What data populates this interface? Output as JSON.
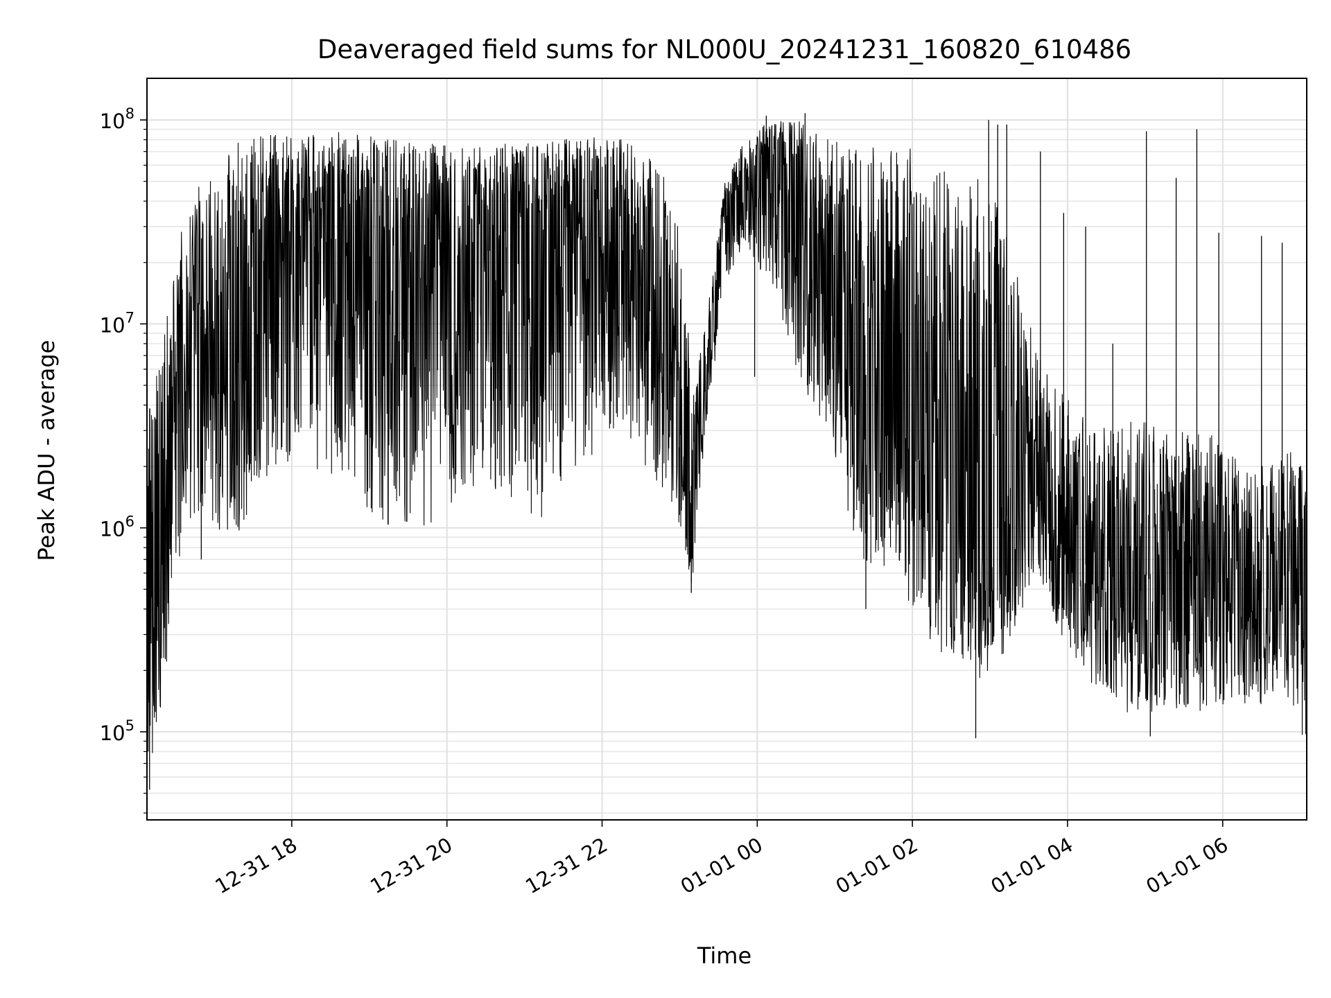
{
  "chart_data": {
    "type": "line",
    "title": "Deaveraged field sums for NL000U_20241231_160820_610486",
    "xlabel": "Time",
    "ylabel": "Peak ADU - average",
    "x_type": "datetime",
    "xlim": [
      "2024-12-31 16:08",
      "2025-01-01 07:05"
    ],
    "y_scale": "log",
    "ylim": [
      37000,
      160000000
    ],
    "grid": true,
    "x_ticks": [
      {
        "time": "2024-12-31 18:00",
        "label": "12-31 18"
      },
      {
        "time": "2024-12-31 20:00",
        "label": "12-31 20"
      },
      {
        "time": "2024-12-31 22:00",
        "label": "12-31 22"
      },
      {
        "time": "2025-01-01 00:00",
        "label": "01-01 00"
      },
      {
        "time": "2025-01-01 02:00",
        "label": "01-01 02"
      },
      {
        "time": "2025-01-01 04:00",
        "label": "01-01 04"
      },
      {
        "time": "2025-01-01 06:00",
        "label": "01-01 06"
      }
    ],
    "y_ticks": [
      {
        "value": 100000,
        "base": "10",
        "exp": "5"
      },
      {
        "value": 1000000,
        "base": "10",
        "exp": "6"
      },
      {
        "value": 10000000,
        "base": "10",
        "exp": "7"
      },
      {
        "value": 100000000,
        "base": "10",
        "exp": "8"
      }
    ],
    "series": [
      {
        "color": "#000000",
        "envelope": [
          {
            "time": "2024-12-31 16:08",
            "low": 55000,
            "high": 3500000,
            "typical": 300000
          },
          {
            "time": "2024-12-31 16:20",
            "low": 130000,
            "high": 9000000,
            "typical": 900000
          },
          {
            "time": "2024-12-31 16:35",
            "low": 800000,
            "high": 30000000,
            "typical": 8000000
          },
          {
            "time": "2024-12-31 16:55",
            "low": 1000000,
            "high": 60000000,
            "typical": 12000000
          },
          {
            "time": "2024-12-31 17:20",
            "low": 900000,
            "high": 80000000,
            "typical": 9000000
          },
          {
            "time": "2024-12-31 17:45",
            "low": 2000000,
            "high": 85000000,
            "typical": 20000000
          },
          {
            "time": "2024-12-31 18:15",
            "low": 2000000,
            "high": 85000000,
            "typical": 30000000
          },
          {
            "time": "2024-12-31 18:45",
            "low": 1500000,
            "high": 88000000,
            "typical": 35000000
          },
          {
            "time": "2024-12-31 19:15",
            "low": 1000000,
            "high": 80000000,
            "typical": 15000000
          },
          {
            "time": "2024-12-31 19:45",
            "low": 1000000,
            "high": 80000000,
            "typical": 12000000
          },
          {
            "time": "2024-12-31 20:15",
            "low": 1500000,
            "high": 75000000,
            "typical": 18000000
          },
          {
            "time": "2024-12-31 20:45",
            "low": 1500000,
            "high": 78000000,
            "typical": 20000000
          },
          {
            "time": "2024-12-31 21:15",
            "low": 1000000,
            "high": 80000000,
            "typical": 22000000
          },
          {
            "time": "2024-12-31 21:45",
            "low": 2000000,
            "high": 82000000,
            "typical": 25000000
          },
          {
            "time": "2024-12-31 22:15",
            "low": 3000000,
            "high": 85000000,
            "typical": 30000000
          },
          {
            "time": "2024-12-31 22:45",
            "low": 1500000,
            "high": 60000000,
            "typical": 12000000
          },
          {
            "time": "2024-12-31 23:00",
            "low": 1000000,
            "high": 30000000,
            "typical": 3000000
          },
          {
            "time": "2024-12-31 23:10",
            "low": 480000,
            "high": 5000000,
            "typical": 1500000
          },
          {
            "time": "2024-12-31 23:20",
            "low": 3000000,
            "high": 10000000,
            "typical": 5000000
          },
          {
            "time": "2024-12-31 23:35",
            "low": 15000000,
            "high": 50000000,
            "typical": 30000000
          },
          {
            "time": "2024-12-31 23:50",
            "low": 25000000,
            "high": 80000000,
            "typical": 50000000
          },
          {
            "time": "2025-01-01 00:10",
            "low": 15000000,
            "high": 100000000,
            "typical": 60000000
          },
          {
            "time": "2025-01-01 00:35",
            "low": 5000000,
            "high": 100000000,
            "typical": 45000000
          },
          {
            "time": "2025-01-01 00:55",
            "low": 2500000,
            "high": 80000000,
            "typical": 12000000
          },
          {
            "time": "2025-01-01 01:20",
            "low": 700000,
            "high": 75000000,
            "typical": 6000000
          },
          {
            "time": "2025-01-01 01:45",
            "low": 600000,
            "high": 80000000,
            "typical": 4000000
          },
          {
            "time": "2025-01-01 02:10",
            "low": 300000,
            "high": 70000000,
            "typical": 2000000
          },
          {
            "time": "2025-01-01 02:35",
            "low": 200000,
            "high": 50000000,
            "typical": 1000000
          },
          {
            "time": "2025-01-01 02:55",
            "low": 180000,
            "high": 60000000,
            "typical": 800000
          },
          {
            "time": "2025-01-01 03:15",
            "low": 250000,
            "high": 30000000,
            "typical": 1200000
          },
          {
            "time": "2025-01-01 03:35",
            "low": 600000,
            "high": 8000000,
            "typical": 1500000
          },
          {
            "time": "2025-01-01 03:55",
            "low": 300000,
            "high": 5000000,
            "typical": 900000
          },
          {
            "time": "2025-01-01 04:20",
            "low": 150000,
            "high": 3000000,
            "typical": 600000
          },
          {
            "time": "2025-01-01 04:50",
            "low": 120000,
            "high": 3500000,
            "typical": 550000
          },
          {
            "time": "2025-01-01 05:20",
            "low": 130000,
            "high": 3000000,
            "typical": 650000
          },
          {
            "time": "2025-01-01 05:50",
            "low": 120000,
            "high": 3000000,
            "typical": 550000
          },
          {
            "time": "2025-01-01 06:20",
            "low": 130000,
            "high": 2000000,
            "typical": 500000
          },
          {
            "time": "2025-01-01 06:50",
            "low": 150000,
            "high": 2500000,
            "typical": 450000
          },
          {
            "time": "2025-01-01 07:05",
            "low": 80000,
            "high": 2000000,
            "typical": 500000
          }
        ],
        "spikes": [
          {
            "time": "2024-12-31 16:10",
            "value": 52000
          },
          {
            "time": "2024-12-31 16:50",
            "value": 700000
          },
          {
            "time": "2024-12-31 23:09",
            "value": 480000
          },
          {
            "time": "2024-12-31 23:58",
            "value": 5500000
          },
          {
            "time": "2025-01-01 00:07",
            "value": 105000000
          },
          {
            "time": "2025-01-01 00:37",
            "value": 108000000
          },
          {
            "time": "2025-01-01 01:24",
            "value": 400000
          },
          {
            "time": "2025-01-01 02:49",
            "value": 93000
          },
          {
            "time": "2025-01-01 02:59",
            "value": 100000000
          },
          {
            "time": "2025-01-01 03:06",
            "value": 95000000
          },
          {
            "time": "2025-01-01 03:13",
            "value": 95000000
          },
          {
            "time": "2025-01-01 03:39",
            "value": 70000000
          },
          {
            "time": "2025-01-01 03:57",
            "value": 35000000
          },
          {
            "time": "2025-01-01 04:14",
            "value": 30000000
          },
          {
            "time": "2025-01-01 04:35",
            "value": 8000000
          },
          {
            "time": "2025-01-01 05:01",
            "value": 88000000
          },
          {
            "time": "2025-01-01 05:04",
            "value": 95000
          },
          {
            "time": "2025-01-01 05:24",
            "value": 52000000
          },
          {
            "time": "2025-01-01 05:40",
            "value": 90000000
          },
          {
            "time": "2025-01-01 05:57",
            "value": 28000000
          },
          {
            "time": "2025-01-01 06:30",
            "value": 27000000
          },
          {
            "time": "2025-01-01 06:46",
            "value": 25000000
          },
          {
            "time": "2025-01-01 07:05",
            "value": 72000
          }
        ]
      }
    ]
  }
}
